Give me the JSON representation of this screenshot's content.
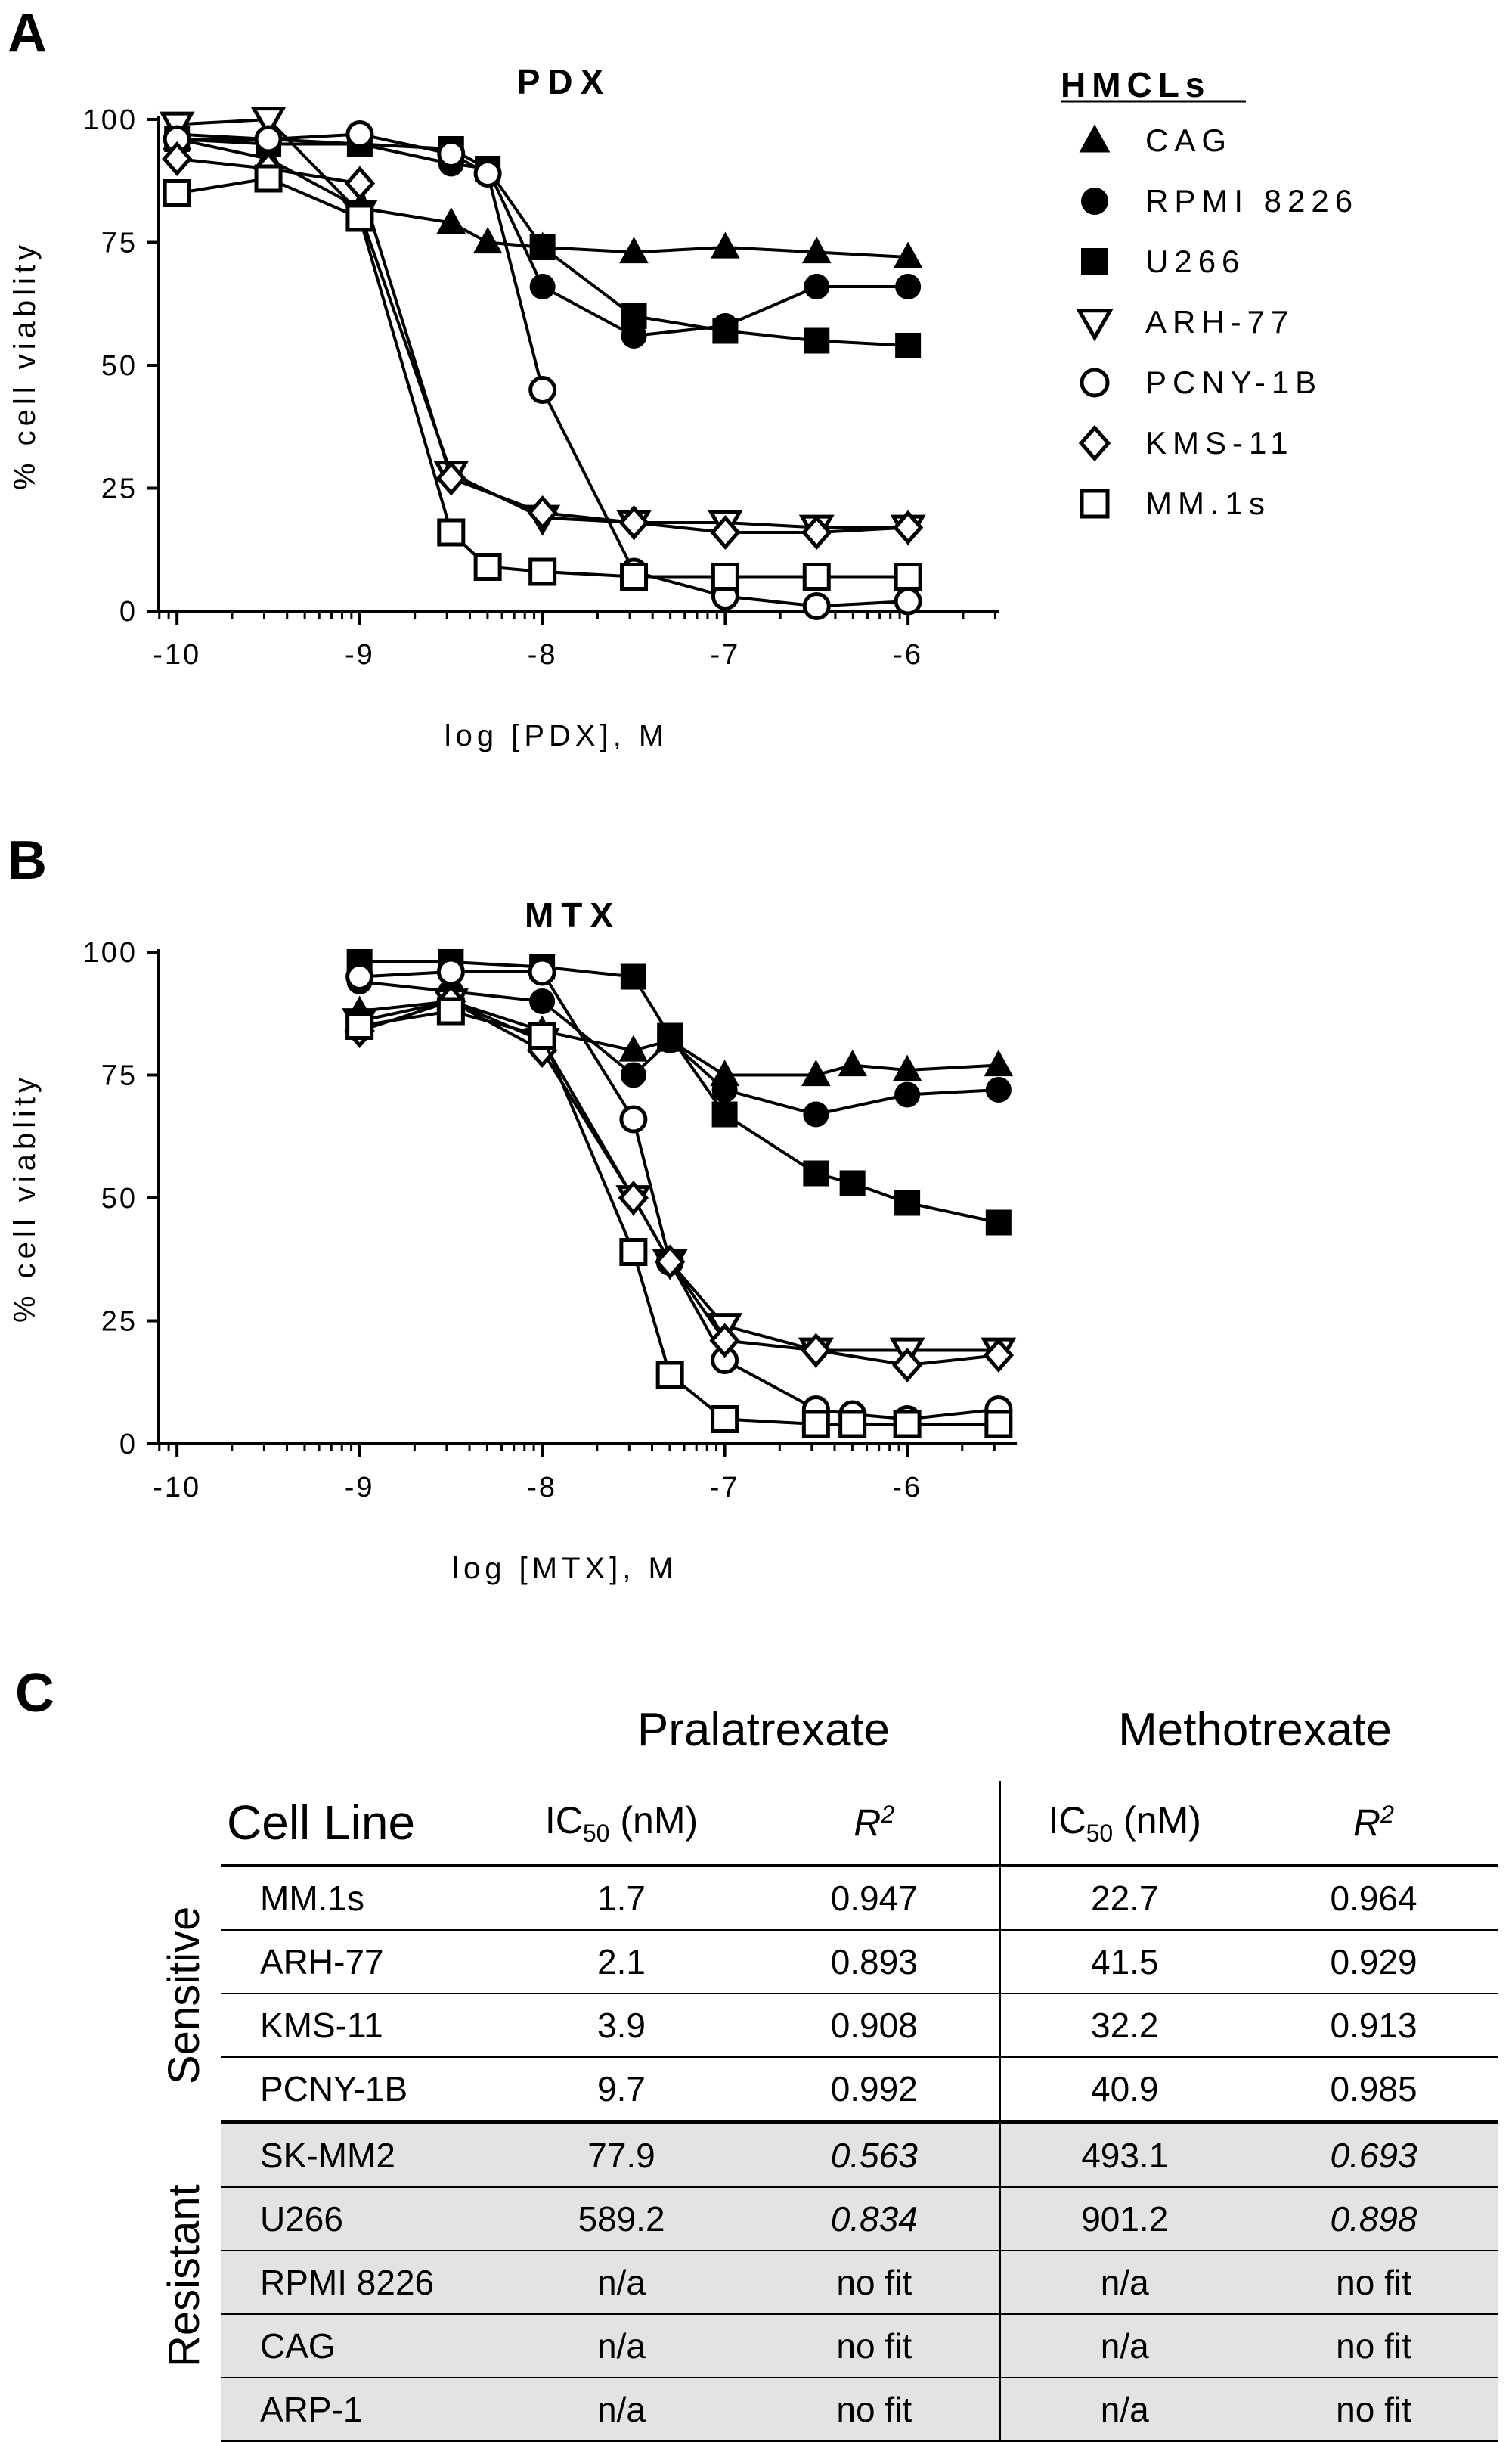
{
  "panels": {
    "a": "A",
    "b": "B",
    "c": "C"
  },
  "legend": {
    "title": "HMCLs",
    "items": [
      {
        "label": "CAG",
        "marker": "filled-triangle-up"
      },
      {
        "label": "RPMI 8226",
        "marker": "filled-circle"
      },
      {
        "label": "U266",
        "marker": "filled-square"
      },
      {
        "label": "ARH-77",
        "marker": "open-triangle-down"
      },
      {
        "label": "PCNY-1B",
        "marker": "open-circle"
      },
      {
        "label": "KMS-11",
        "marker": "open-diamond"
      },
      {
        "label": "MM.1s",
        "marker": "open-square"
      }
    ]
  },
  "chart_data": [
    {
      "type": "line",
      "title": "PDX",
      "xlabel": "log [PDX], M",
      "ylabel": "% cell viablity",
      "xlim": [
        -10.1,
        -5.5
      ],
      "ylim": [
        0,
        100
      ],
      "xticks": [
        -10,
        -9,
        -8,
        -7,
        -6
      ],
      "yticks": [
        0,
        25,
        50,
        75,
        100
      ],
      "x_tick_labels": [
        "-10",
        "-9",
        "-8",
        "-7",
        "-6"
      ],
      "y_tick_labels": [
        "0",
        "25",
        "50",
        "75",
        "100"
      ],
      "series": [
        {
          "name": "CAG",
          "marker": "filled-triangle-up",
          "x": [
            -10,
            -9.5,
            -9,
            -8.5,
            -8.3,
            -8,
            -7.5,
            -7,
            -6.5,
            -6
          ],
          "y": [
            96,
            92,
            82,
            79,
            75,
            74,
            73,
            74,
            73,
            72
          ]
        },
        {
          "name": "RPMI 8226",
          "marker": "filled-circle",
          "x": [
            -10,
            -9.5,
            -9,
            -8.5,
            -8.3,
            -8,
            -7.5,
            -7,
            -6.5,
            -6
          ],
          "y": [
            97,
            96,
            95,
            91,
            90,
            66,
            56,
            58,
            66,
            66
          ]
        },
        {
          "name": "U266",
          "marker": "filled-square",
          "x": [
            -10,
            -9.5,
            -9,
            -8.5,
            -8.3,
            -8,
            -7.5,
            -7,
            -6.5,
            -6
          ],
          "y": [
            96,
            95,
            95,
            94,
            90,
            74,
            60,
            57,
            55,
            54
          ]
        },
        {
          "name": "ARH-77",
          "marker": "open-triangle-down",
          "x": [
            -10,
            -9.5,
            -9,
            -8.5,
            -8,
            -7.5,
            -7,
            -6.5,
            -6
          ],
          "y": [
            99,
            100,
            81,
            28,
            19,
            18,
            18,
            17,
            17
          ]
        },
        {
          "name": "PCNY-1B",
          "marker": "open-circle",
          "x": [
            -10,
            -9.5,
            -9,
            -8.5,
            -8.3,
            -8,
            -7.5,
            -7,
            -6.5,
            -6
          ],
          "y": [
            96,
            96,
            97,
            93,
            89,
            45,
            8,
            3,
            1,
            2
          ]
        },
        {
          "name": "KMS-11",
          "marker": "open-diamond",
          "x": [
            -10,
            -9.5,
            -9,
            -8.5,
            -8,
            -7.5,
            -7,
            -6.5,
            -6
          ],
          "y": [
            92,
            90,
            87,
            27,
            20,
            18,
            16,
            16,
            17
          ]
        },
        {
          "name": "MM.1s",
          "marker": "open-square",
          "x": [
            -10,
            -9.5,
            -9,
            -8.5,
            -8.3,
            -8,
            -7.5,
            -7,
            -6.5,
            -6
          ],
          "y": [
            85,
            88,
            80,
            16,
            9,
            8,
            7,
            7,
            7,
            7
          ]
        }
      ]
    },
    {
      "type": "line",
      "title": "MTX",
      "xlabel": "log [MTX], M",
      "ylabel": "% cell viablity",
      "xlim": [
        -10.1,
        -5.4
      ],
      "ylim": [
        0,
        100
      ],
      "xticks": [
        -10,
        -9,
        -8,
        -7,
        -6
      ],
      "yticks": [
        0,
        25,
        50,
        75,
        100
      ],
      "x_tick_labels": [
        "-10",
        "-9",
        "-8",
        "-7",
        "-6"
      ],
      "y_tick_labels": [
        "0",
        "25",
        "50",
        "75",
        "100"
      ],
      "series": [
        {
          "name": "CAG",
          "marker": "filled-triangle-up",
          "x": [
            -9,
            -8.5,
            -8,
            -7.5,
            -7.3,
            -7,
            -6.5,
            -6.3,
            -6,
            -5.5
          ],
          "y": [
            88,
            90,
            84,
            80,
            82,
            75,
            75,
            77,
            76,
            77
          ]
        },
        {
          "name": "RPMI 8226",
          "marker": "filled-circle",
          "x": [
            -9,
            -8.5,
            -8,
            -7.5,
            -7.3,
            -7,
            -6.5,
            -6,
            -5.5
          ],
          "y": [
            94,
            92,
            90,
            75,
            82,
            72,
            67,
            71,
            72
          ]
        },
        {
          "name": "U266",
          "marker": "filled-square",
          "x": [
            -9,
            -8.5,
            -8,
            -7.5,
            -7.3,
            -7,
            -6.5,
            -6.3,
            -6,
            -5.5
          ],
          "y": [
            98,
            98,
            97,
            95,
            83,
            67,
            55,
            53,
            49,
            45
          ]
        },
        {
          "name": "ARH-77",
          "marker": "open-triangle-down",
          "x": [
            -9,
            -8.5,
            -8,
            -7.5,
            -7.3,
            -7,
            -6.5,
            -6,
            -5.5
          ],
          "y": [
            86,
            90,
            82,
            50,
            37,
            24,
            19,
            19,
            19
          ]
        },
        {
          "name": "PCNY-1B",
          "marker": "open-circle",
          "x": [
            -9,
            -8.5,
            -8,
            -7.5,
            -7.3,
            -7,
            -6.5,
            -6.3,
            -6,
            -5.5
          ],
          "y": [
            95,
            96,
            96,
            66,
            37,
            17,
            7,
            6,
            5,
            7
          ]
        },
        {
          "name": "KMS-11",
          "marker": "open-diamond",
          "x": [
            -9,
            -8.5,
            -8,
            -7.5,
            -7.3,
            -7,
            -6.5,
            -6,
            -5.5
          ],
          "y": [
            84,
            90,
            80,
            50,
            37,
            21,
            19,
            16,
            18
          ]
        },
        {
          "name": "MM.1s",
          "marker": "open-square",
          "x": [
            -9,
            -8.5,
            -8,
            -7.5,
            -7.3,
            -7,
            -6.5,
            -6.3,
            -6,
            -5.5
          ],
          "y": [
            85,
            88,
            83,
            39,
            14,
            5,
            4,
            4,
            4,
            4
          ]
        }
      ]
    },
    {
      "type": "table",
      "groups": {
        "pralatrexate": "Pralatrexate",
        "methotrexate": "Methotrexate"
      },
      "headers": {
        "cell_line": "Cell Line",
        "ic50": "IC",
        "ic50_sub": "50",
        "ic50_unit": " (nM)",
        "r2": "R",
        "r2_sup": "2"
      },
      "row_groups": {
        "sensitive": "Sensitive",
        "resistant": "Resistant"
      },
      "rows": [
        {
          "cell_line": "MM.1s",
          "prx_ic50": "1.7",
          "prx_r2": "0.947",
          "mtx_ic50": "22.7",
          "mtx_r2": "0.964",
          "group": "sensitive"
        },
        {
          "cell_line": "ARH-77",
          "prx_ic50": "2.1",
          "prx_r2": "0.893",
          "mtx_ic50": "41.5",
          "mtx_r2": "0.929",
          "group": "sensitive"
        },
        {
          "cell_line": "KMS-11",
          "prx_ic50": "3.9",
          "prx_r2": "0.908",
          "mtx_ic50": "32.2",
          "mtx_r2": "0.913",
          "group": "sensitive"
        },
        {
          "cell_line": "PCNY-1B",
          "prx_ic50": "9.7",
          "prx_r2": "0.992",
          "mtx_ic50": "40.9",
          "mtx_r2": "0.985",
          "group": "sensitive"
        },
        {
          "cell_line": "SK-MM2",
          "prx_ic50": "77.9",
          "prx_r2": "0.563",
          "mtx_ic50": "493.1",
          "mtx_r2": "0.693",
          "group": "resistant"
        },
        {
          "cell_line": "U266",
          "prx_ic50": "589.2",
          "prx_r2": "0.834",
          "mtx_ic50": "901.2",
          "mtx_r2": "0.898",
          "group": "resistant"
        },
        {
          "cell_line": "RPMI 8226",
          "prx_ic50": "n/a",
          "prx_r2": "no fit",
          "mtx_ic50": "n/a",
          "mtx_r2": "no fit",
          "group": "resistant"
        },
        {
          "cell_line": "CAG",
          "prx_ic50": "n/a",
          "prx_r2": "no fit",
          "mtx_ic50": "n/a",
          "mtx_r2": "no fit",
          "group": "resistant"
        },
        {
          "cell_line": "ARP-1",
          "prx_ic50": "n/a",
          "prx_r2": "no fit",
          "mtx_ic50": "n/a",
          "mtx_r2": "no fit",
          "group": "resistant"
        }
      ]
    }
  ]
}
